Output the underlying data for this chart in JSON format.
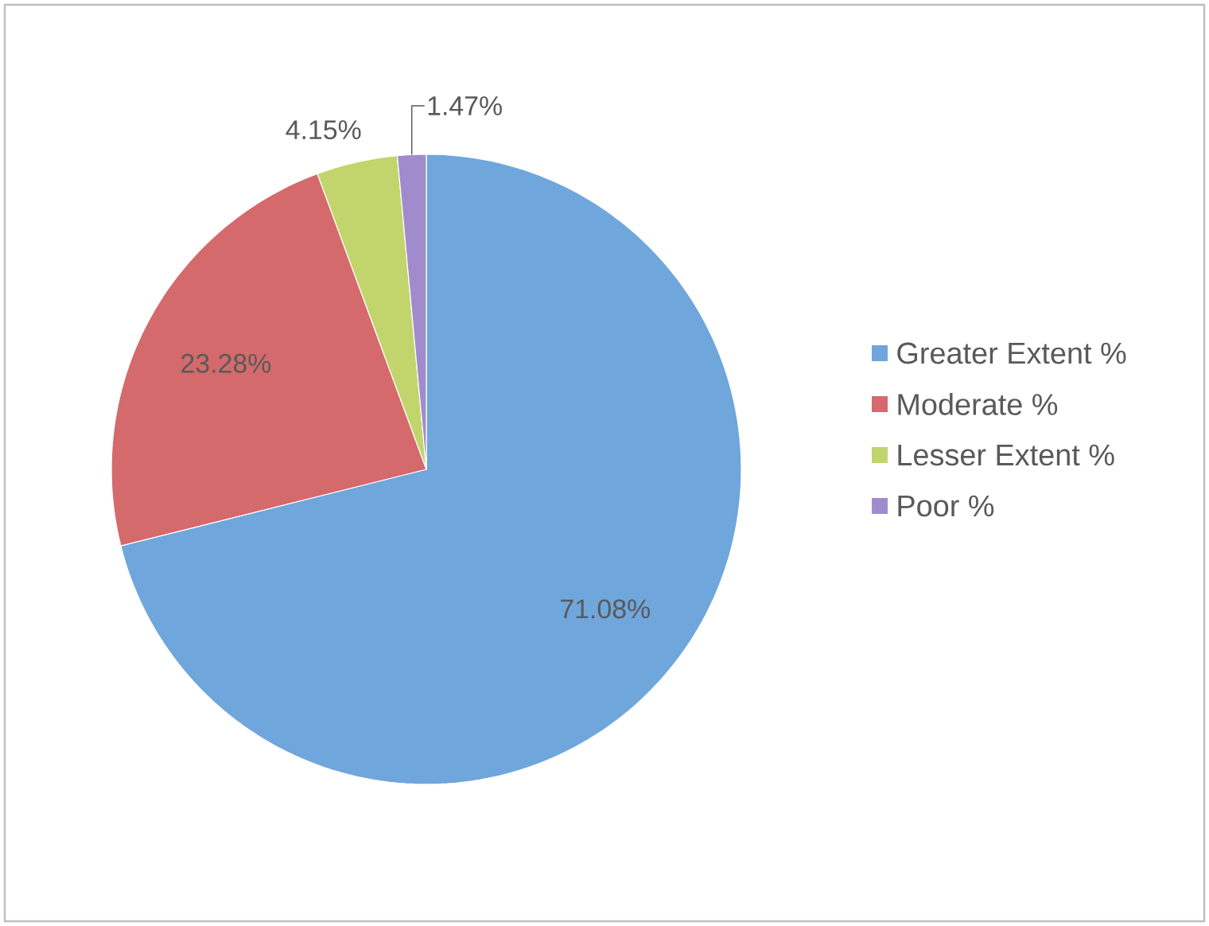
{
  "chart_data": {
    "type": "pie",
    "categories": [
      "Greater Extent %",
      "Moderate %",
      "Lesser Extent %",
      "Poor %"
    ],
    "values": [
      71.08,
      23.28,
      4.15,
      1.47
    ],
    "value_labels": [
      "71.08%",
      "23.28%",
      "4.15%",
      "1.47%"
    ],
    "colors": [
      "#6fa6dc",
      "#d46a6c",
      "#c2d56c",
      "#a08ccc"
    ],
    "legend": "right"
  }
}
